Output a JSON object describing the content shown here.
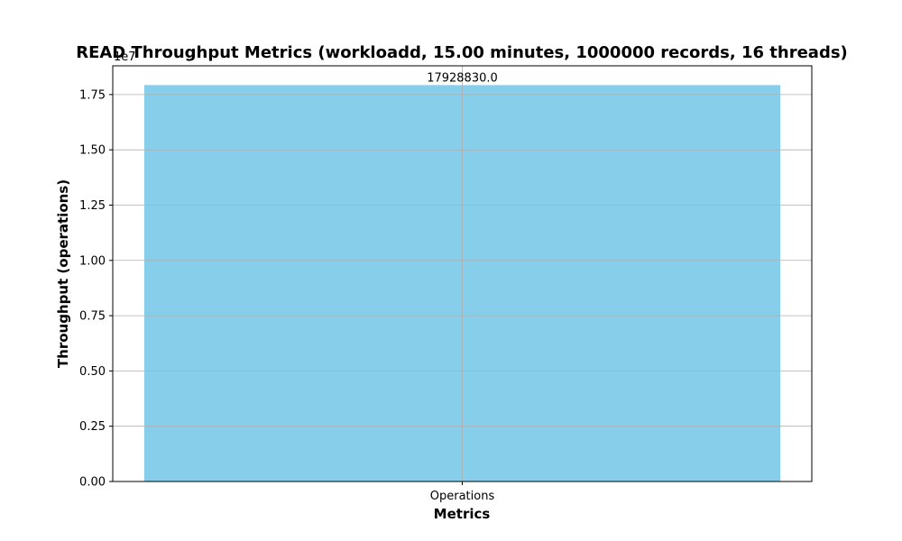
{
  "chart_data": {
    "type": "bar",
    "title": "READ Throughput Metrics (workloadd, 15.00 minutes, 1000000 records, 16 threads)",
    "xlabel": "Metrics",
    "ylabel": "Throughput (operations)",
    "categories": [
      "Operations"
    ],
    "values": [
      17928830.0
    ],
    "data_labels": [
      "17928830.0"
    ],
    "ylim": [
      0,
      18800000
    ],
    "y_ticks": [
      0,
      2500000,
      5000000,
      7500000,
      10000000,
      12500000,
      15000000,
      17500000
    ],
    "y_tick_labels": [
      "0.00",
      "0.25",
      "0.50",
      "0.75",
      "1.00",
      "1.25",
      "1.50",
      "1.75"
    ],
    "y_offset_label": "1e7",
    "grid": true,
    "bar_color": "#87CEEB"
  }
}
